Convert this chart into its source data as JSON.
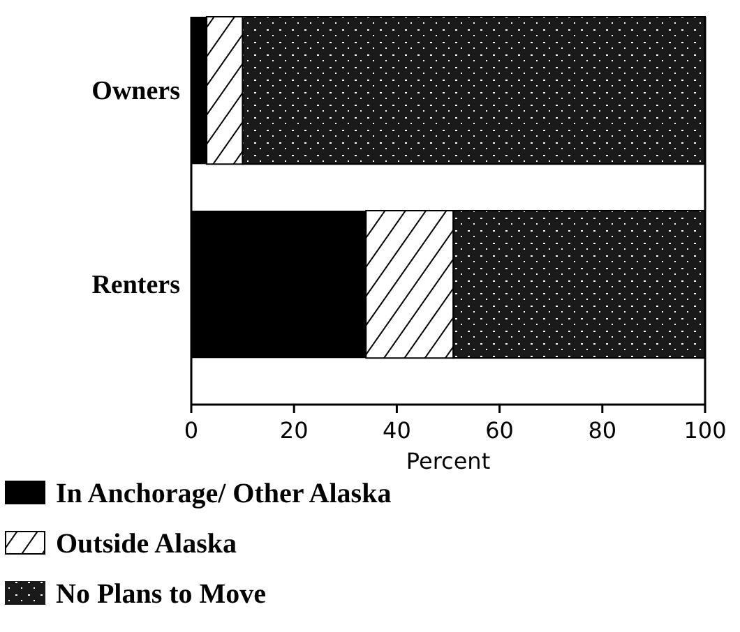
{
  "chart_data": {
    "type": "bar",
    "orientation": "horizontal",
    "stacked": true,
    "categories": [
      "Owners",
      "Renters"
    ],
    "xlabel": "Percent",
    "xlim": [
      0,
      100
    ],
    "xticks": [
      0,
      20,
      40,
      60,
      80,
      100
    ],
    "legend": "bottom left",
    "series": [
      {
        "name": "In Anchorage/ Other Alaska",
        "color": "#000000",
        "values": [
          3,
          34
        ]
      },
      {
        "name": "Outside Alaska",
        "color": "#ffffff",
        "values": [
          7,
          17
        ]
      },
      {
        "name": "No Plans to Move",
        "color": "#1a1a1a",
        "values": [
          90,
          49
        ]
      }
    ]
  }
}
